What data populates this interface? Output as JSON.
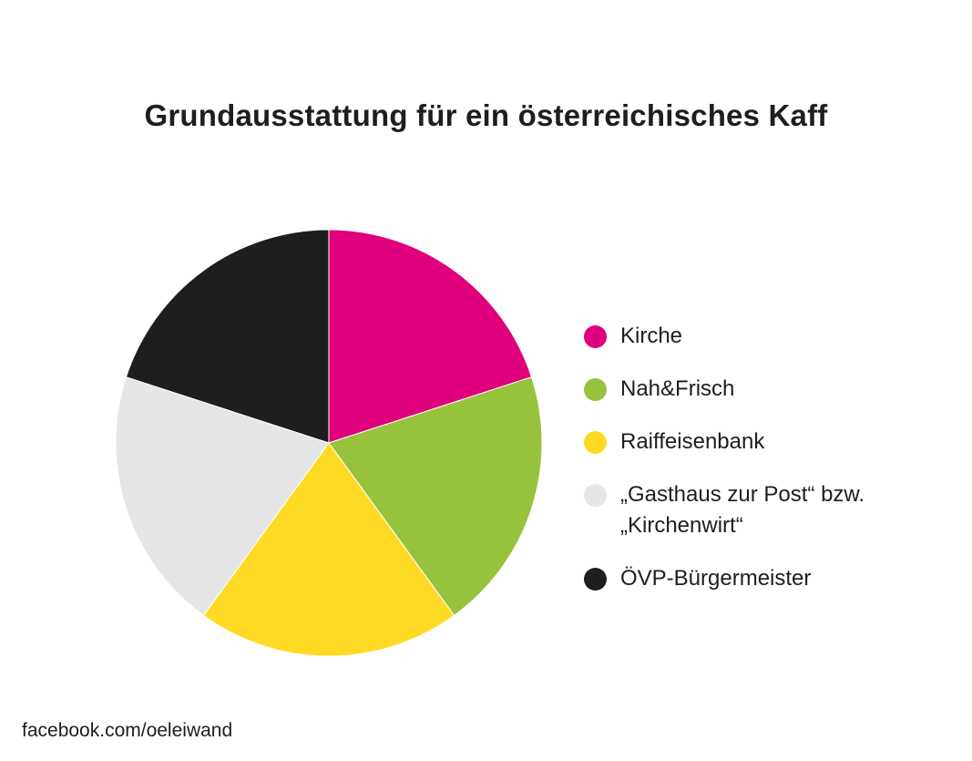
{
  "chart_data": {
    "type": "pie",
    "title": "Grundausstattung für ein österreichisches Kaff",
    "categories": [
      "Kirche",
      "Nah&Frisch",
      "Raiffeisenbank",
      "„Gasthaus zur Post“ bzw.\n„Kirchenwirt“",
      "ÖVP-Bürgermeister"
    ],
    "values": [
      20,
      20,
      20,
      20,
      20
    ],
    "colors": [
      "#e0007d",
      "#97c23c",
      "#ffda24",
      "#e6e6e6",
      "#1e1e1e"
    ],
    "start": "12 o'clock",
    "direction": "clockwise",
    "legend_position": "right"
  },
  "footer": {
    "source": "facebook.com/oeleiwand"
  }
}
